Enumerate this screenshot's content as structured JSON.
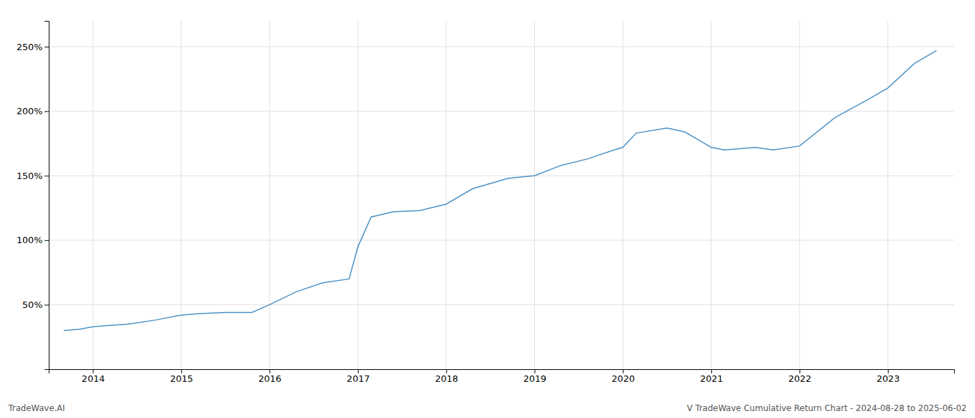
{
  "chart_data": {
    "type": "line",
    "x": [
      2013.67,
      2013.85,
      2014.0,
      2014.2,
      2014.4,
      2014.7,
      2015.0,
      2015.2,
      2015.5,
      2015.8,
      2016.0,
      2016.3,
      2016.6,
      2016.9,
      2017.0,
      2017.15,
      2017.4,
      2017.7,
      2018.0,
      2018.3,
      2018.7,
      2019.0,
      2019.3,
      2019.6,
      2019.9,
      2020.0,
      2020.15,
      2020.5,
      2020.7,
      2020.85,
      2021.0,
      2021.15,
      2021.5,
      2021.7,
      2022.0,
      2022.4,
      2022.8,
      2023.0,
      2023.3,
      2023.55
    ],
    "values": [
      30,
      31,
      33,
      34,
      35,
      38,
      42,
      43,
      44,
      44,
      50,
      60,
      67,
      70,
      95,
      118,
      122,
      123,
      128,
      140,
      148,
      150,
      158,
      163,
      170,
      172,
      183,
      187,
      184,
      178,
      172,
      170,
      172,
      170,
      173,
      195,
      210,
      218,
      237,
      247
    ],
    "color": "#4a90c4",
    "xlim": [
      2013.5,
      2023.75
    ],
    "xticks": [
      2014,
      2015,
      2016,
      2017,
      2018,
      2019,
      2020,
      2021,
      2022,
      2023
    ],
    "ylim": [
      0,
      270
    ],
    "yticks": [
      {
        "value": 50,
        "label": "50%"
      },
      {
        "value": 100,
        "label": "100%"
      },
      {
        "value": 150,
        "label": "150%"
      },
      {
        "value": 200,
        "label": "200%"
      },
      {
        "value": 250,
        "label": "250%"
      }
    ],
    "grid": true,
    "annotations": [
      "TradeWave.AI",
      "V TradeWave Cumulative Return Chart - 2024-08-28 to 2025-06-02"
    ]
  }
}
